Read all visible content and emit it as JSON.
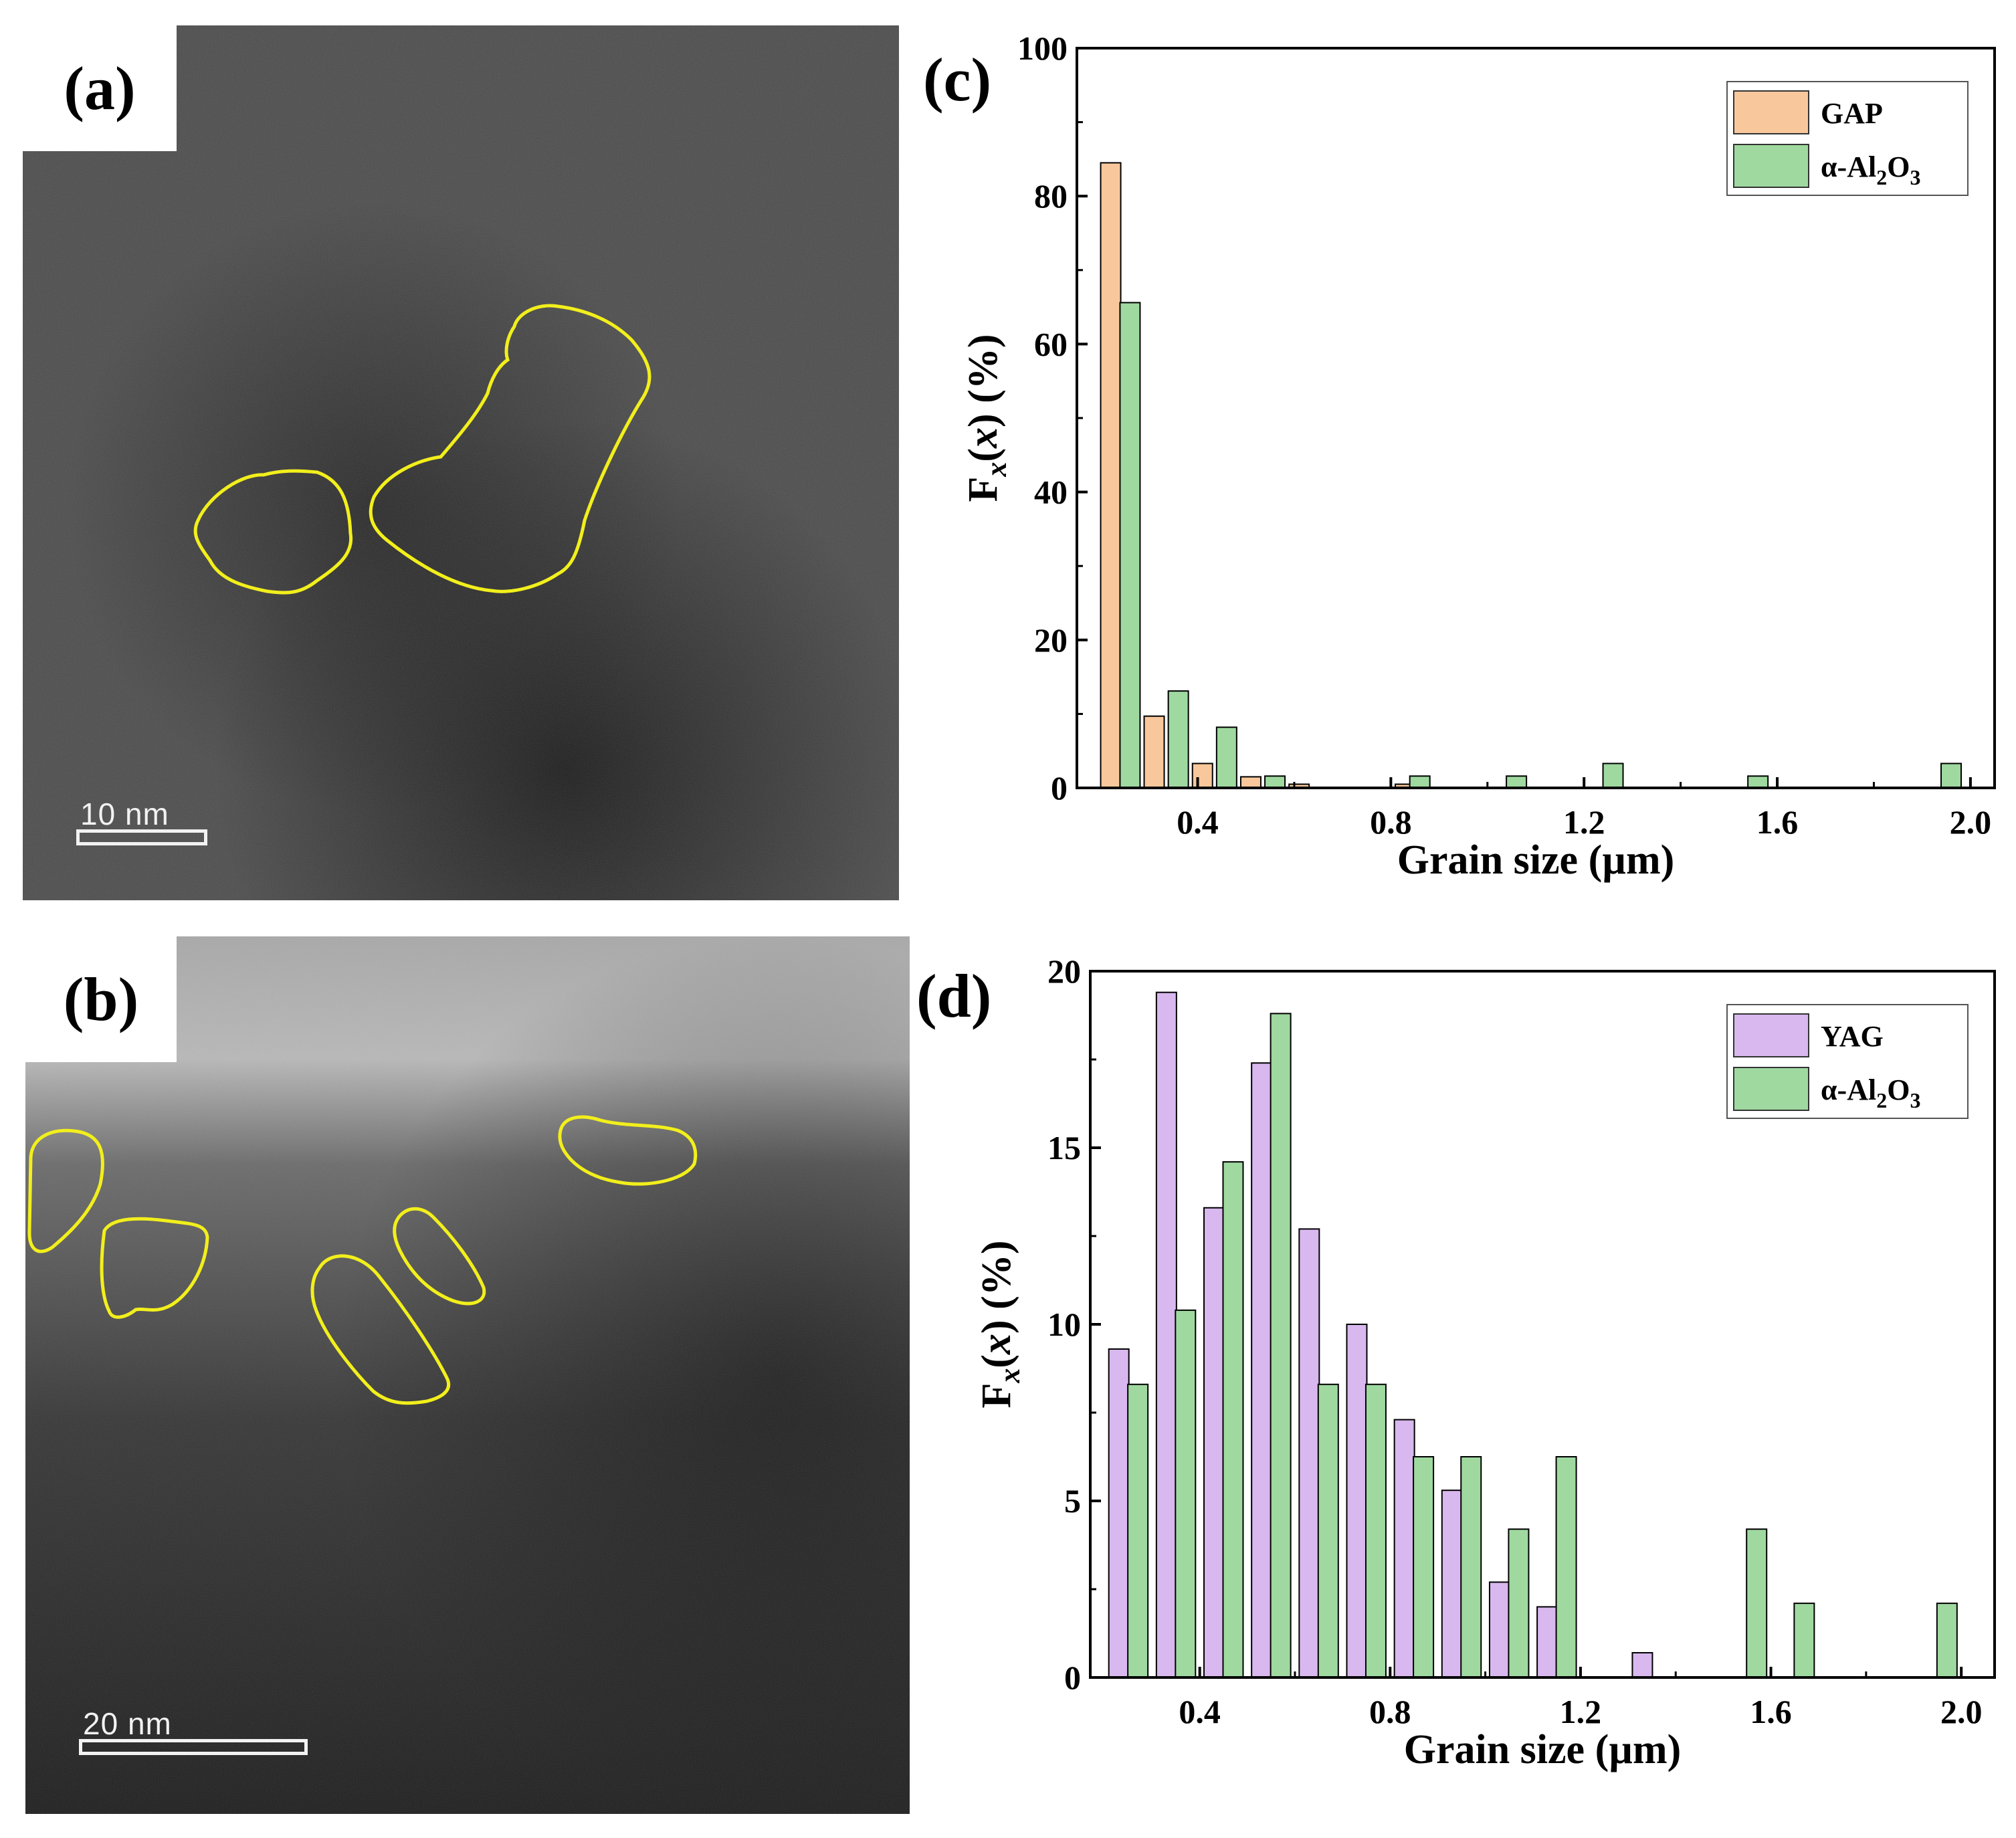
{
  "panels": {
    "a": {
      "letter": "(a)",
      "scalebar": "10  nm"
    },
    "b": {
      "letter": "(b)",
      "scalebar": "20  nm"
    }
  },
  "colors": {
    "outline": "#f2ef1c",
    "GAP": "#f8c89c",
    "YAG": "#d8b8ee",
    "alumina": "#9fd9a0"
  },
  "chart_data": [
    {
      "panel_label": "(c)",
      "type": "bar",
      "xlabel": "Grain size (µm)",
      "ylabel": "Fx(x) (%)",
      "xlim": [
        0.15,
        2.05
      ],
      "ylim": [
        0,
        100
      ],
      "xticks": [
        "0.4",
        "0.8",
        "1.2",
        "1.6",
        "2.0"
      ],
      "yticks": [
        "0",
        "20",
        "40",
        "60",
        "80",
        "100"
      ],
      "legend_position": "top-right",
      "series": [
        {
          "name": "GAP",
          "color_key": "GAP",
          "x": [
            0.22,
            0.31,
            0.41,
            0.51,
            0.61,
            0.83
          ],
          "values": [
            84.5,
            9.7,
            3.3,
            1.5,
            0.5,
            0.5
          ]
        },
        {
          "name": "α-Al2O3",
          "color_key": "alumina",
          "x": [
            0.26,
            0.36,
            0.46,
            0.56,
            0.86,
            1.06,
            1.26,
            1.56,
            1.96
          ],
          "values": [
            65.6,
            13.1,
            8.2,
            1.6,
            1.6,
            1.6,
            3.3,
            1.6,
            3.3
          ]
        }
      ]
    },
    {
      "panel_label": "(d)",
      "type": "bar",
      "xlabel": "Grain size (µm)",
      "ylabel": "Fx(x) (%)",
      "xlim": [
        0.17,
        2.07
      ],
      "ylim": [
        0,
        20
      ],
      "xticks": [
        "0.4",
        "0.8",
        "1.2",
        "1.6",
        "2.0"
      ],
      "yticks": [
        "0",
        "5",
        "10",
        "15",
        "20"
      ],
      "legend_position": "top-right",
      "series": [
        {
          "name": "YAG",
          "color_key": "YAG",
          "x": [
            0.23,
            0.33,
            0.43,
            0.53,
            0.63,
            0.73,
            0.83,
            0.93,
            1.03,
            1.13,
            1.33
          ],
          "values": [
            9.3,
            19.4,
            13.3,
            17.4,
            12.7,
            10.0,
            7.3,
            5.3,
            2.7,
            2.0,
            0.7
          ]
        },
        {
          "name": "α-Al2O3",
          "color_key": "alumina",
          "x": [
            0.27,
            0.37,
            0.47,
            0.57,
            0.67,
            0.77,
            0.87,
            0.97,
            1.07,
            1.17,
            1.57,
            1.67,
            1.97
          ],
          "values": [
            8.3,
            10.4,
            14.6,
            18.8,
            8.3,
            8.3,
            6.25,
            6.25,
            4.2,
            6.25,
            4.2,
            2.1,
            2.1
          ]
        }
      ]
    }
  ]
}
